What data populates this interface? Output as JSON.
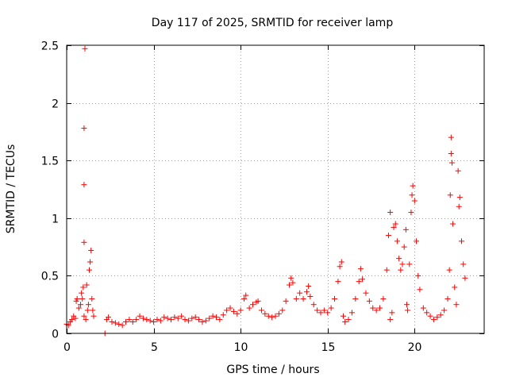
{
  "chart_data": {
    "type": "scatter",
    "title": "Day 117 of 2025, SRMTID for receiver lamp",
    "xlabel": "GPS time / hours",
    "ylabel": "SRMTID / TECUs",
    "xlim": [
      0,
      24
    ],
    "ylim": [
      0,
      2.5
    ],
    "xticks": [
      0,
      5,
      10,
      15,
      20
    ],
    "yticks": [
      0,
      0.5,
      1,
      1.5,
      2,
      2.5
    ],
    "xtick_labels": [
      "0",
      "5",
      "10",
      "15",
      "20"
    ],
    "ytick_labels": [
      "0",
      "0.5",
      "1",
      "1.5",
      "2",
      "2.5"
    ],
    "grid": true,
    "marker": "plus",
    "series_color": "#ff0000",
    "series": [
      {
        "name": "SRMTID",
        "points": [
          [
            0.0,
            0.08
          ],
          [
            0.1,
            0.07
          ],
          [
            0.2,
            0.1
          ],
          [
            0.3,
            0.12
          ],
          [
            0.4,
            0.15
          ],
          [
            0.5,
            0.13
          ],
          [
            0.55,
            0.28
          ],
          [
            0.6,
            0.3
          ],
          [
            0.7,
            0.22
          ],
          [
            0.8,
            0.25
          ],
          [
            0.85,
            0.35
          ],
          [
            0.9,
            0.3
          ],
          [
            0.95,
            0.4
          ],
          [
            1.0,
            0.15
          ],
          [
            1.0,
            0.79
          ],
          [
            1.0,
            1.29
          ],
          [
            1.0,
            1.78
          ],
          [
            1.05,
            2.47
          ],
          [
            1.1,
            0.12
          ],
          [
            1.15,
            0.42
          ],
          [
            1.2,
            0.2
          ],
          [
            1.25,
            0.25
          ],
          [
            1.3,
            0.55
          ],
          [
            1.35,
            0.62
          ],
          [
            1.4,
            0.72
          ],
          [
            1.45,
            0.3
          ],
          [
            1.5,
            0.2
          ],
          [
            1.55,
            0.15
          ],
          [
            2.2,
            0.0
          ],
          [
            2.3,
            0.12
          ],
          [
            2.4,
            0.14
          ],
          [
            2.6,
            0.1
          ],
          [
            2.8,
            0.09
          ],
          [
            3.0,
            0.08
          ],
          [
            3.2,
            0.07
          ],
          [
            3.4,
            0.1
          ],
          [
            3.6,
            0.12
          ],
          [
            3.8,
            0.1
          ],
          [
            4.0,
            0.12
          ],
          [
            4.2,
            0.15
          ],
          [
            4.4,
            0.13
          ],
          [
            4.6,
            0.12
          ],
          [
            4.8,
            0.11
          ],
          [
            5.0,
            0.1
          ],
          [
            5.2,
            0.12
          ],
          [
            5.4,
            0.11
          ],
          [
            5.6,
            0.14
          ],
          [
            5.8,
            0.13
          ],
          [
            6.0,
            0.12
          ],
          [
            6.2,
            0.14
          ],
          [
            6.4,
            0.13
          ],
          [
            6.6,
            0.15
          ],
          [
            6.8,
            0.12
          ],
          [
            7.0,
            0.11
          ],
          [
            7.2,
            0.13
          ],
          [
            7.4,
            0.14
          ],
          [
            7.6,
            0.12
          ],
          [
            7.8,
            0.1
          ],
          [
            8.0,
            0.11
          ],
          [
            8.2,
            0.13
          ],
          [
            8.4,
            0.15
          ],
          [
            8.6,
            0.14
          ],
          [
            8.8,
            0.12
          ],
          [
            9.0,
            0.16
          ],
          [
            9.2,
            0.2
          ],
          [
            9.4,
            0.22
          ],
          [
            9.6,
            0.19
          ],
          [
            9.8,
            0.17
          ],
          [
            10.0,
            0.2
          ],
          [
            10.2,
            0.3
          ],
          [
            10.3,
            0.33
          ],
          [
            10.5,
            0.22
          ],
          [
            10.7,
            0.25
          ],
          [
            10.9,
            0.27
          ],
          [
            11.0,
            0.28
          ],
          [
            11.2,
            0.2
          ],
          [
            11.4,
            0.17
          ],
          [
            11.6,
            0.15
          ],
          [
            11.8,
            0.14
          ],
          [
            12.0,
            0.15
          ],
          [
            12.2,
            0.17
          ],
          [
            12.4,
            0.2
          ],
          [
            12.6,
            0.28
          ],
          [
            12.8,
            0.42
          ],
          [
            12.9,
            0.48
          ],
          [
            13.0,
            0.44
          ],
          [
            13.2,
            0.3
          ],
          [
            13.4,
            0.35
          ],
          [
            13.6,
            0.3
          ],
          [
            13.8,
            0.36
          ],
          [
            13.9,
            0.41
          ],
          [
            14.0,
            0.32
          ],
          [
            14.2,
            0.25
          ],
          [
            14.4,
            0.2
          ],
          [
            14.6,
            0.18
          ],
          [
            14.8,
            0.2
          ],
          [
            15.0,
            0.18
          ],
          [
            15.2,
            0.22
          ],
          [
            15.4,
            0.3
          ],
          [
            15.6,
            0.45
          ],
          [
            15.7,
            0.58
          ],
          [
            15.8,
            0.62
          ],
          [
            15.9,
            0.15
          ],
          [
            16.0,
            0.1
          ],
          [
            16.2,
            0.12
          ],
          [
            16.4,
            0.18
          ],
          [
            16.6,
            0.3
          ],
          [
            16.8,
            0.45
          ],
          [
            16.9,
            0.56
          ],
          [
            17.0,
            0.47
          ],
          [
            17.2,
            0.35
          ],
          [
            17.4,
            0.28
          ],
          [
            17.6,
            0.22
          ],
          [
            17.8,
            0.2
          ],
          [
            18.0,
            0.22
          ],
          [
            18.2,
            0.3
          ],
          [
            18.4,
            0.55
          ],
          [
            18.5,
            0.85
          ],
          [
            18.6,
            1.05
          ],
          [
            18.6,
            0.12
          ],
          [
            18.7,
            0.18
          ],
          [
            18.8,
            0.92
          ],
          [
            18.9,
            0.95
          ],
          [
            19.0,
            0.8
          ],
          [
            19.1,
            0.65
          ],
          [
            19.2,
            0.55
          ],
          [
            19.3,
            0.6
          ],
          [
            19.4,
            0.75
          ],
          [
            19.5,
            0.9
          ],
          [
            19.55,
            0.25
          ],
          [
            19.6,
            0.2
          ],
          [
            19.7,
            0.6
          ],
          [
            19.8,
            1.05
          ],
          [
            19.85,
            1.2
          ],
          [
            19.9,
            1.28
          ],
          [
            20.0,
            1.15
          ],
          [
            20.1,
            0.8
          ],
          [
            20.2,
            0.5
          ],
          [
            20.3,
            0.38
          ],
          [
            20.5,
            0.22
          ],
          [
            20.7,
            0.18
          ],
          [
            20.9,
            0.15
          ],
          [
            21.1,
            0.12
          ],
          [
            21.3,
            0.14
          ],
          [
            21.5,
            0.16
          ],
          [
            21.7,
            0.2
          ],
          [
            21.9,
            0.3
          ],
          [
            22.0,
            0.55
          ],
          [
            22.05,
            1.2
          ],
          [
            22.1,
            1.56
          ],
          [
            22.1,
            1.7
          ],
          [
            22.15,
            1.48
          ],
          [
            22.2,
            0.95
          ],
          [
            22.3,
            0.4
          ],
          [
            22.4,
            0.25
          ],
          [
            22.5,
            1.41
          ],
          [
            22.55,
            1.1
          ],
          [
            22.6,
            1.18
          ],
          [
            22.7,
            0.8
          ],
          [
            22.8,
            0.6
          ],
          [
            22.9,
            0.48
          ]
        ]
      }
    ]
  }
}
